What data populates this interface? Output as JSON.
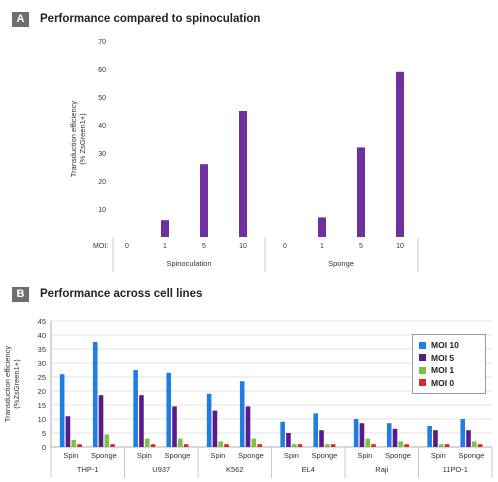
{
  "panel_a": {
    "label": "A",
    "title": "Performance compared to spinoculation"
  },
  "panel_b": {
    "label": "B",
    "title": "Performance across cell lines"
  },
  "chart_data": [
    {
      "type": "bar",
      "title": "Performance compared to spinoculation",
      "ylabel": "Transduction efficiency (% ZsGreen1+)",
      "ylim": [
        0,
        70
      ],
      "yticks": [
        10,
        20,
        30,
        40,
        50,
        60,
        70
      ],
      "xlabel_prefix": "MOI:",
      "grid": false,
      "color": "#7030a0",
      "groups": [
        {
          "name": "Spinoculation",
          "categories": [
            "0",
            "1",
            "5",
            "10"
          ],
          "values": [
            0,
            6,
            26,
            45
          ]
        },
        {
          "name": "Sponge",
          "categories": [
            "0",
            "1",
            "5",
            "10"
          ],
          "values": [
            0,
            7,
            32,
            59
          ]
        }
      ]
    },
    {
      "type": "bar",
      "title": "Performance across cell lines",
      "ylabel": "Transduction efficiency (%ZsGreen1+)",
      "ylim": [
        0,
        45
      ],
      "yticks": [
        0,
        5,
        10,
        15,
        20,
        25,
        30,
        35,
        40,
        45
      ],
      "grid": true,
      "legend_position": "top-right",
      "cell_lines": [
        "THP-1",
        "U937",
        "K562",
        "EL4",
        "Raji",
        "11PO-1"
      ],
      "methods": [
        "Spin",
        "Sponge"
      ],
      "series": [
        {
          "name": "MOI 10",
          "color": "#1f7fe0",
          "values": [
            26,
            37.5,
            27.5,
            26.5,
            19,
            23.5,
            9,
            12,
            10,
            8.5,
            7.5,
            10
          ]
        },
        {
          "name": "MOI 5",
          "color": "#5b1a8c",
          "values": [
            11,
            18.5,
            18.5,
            14.5,
            13,
            14.5,
            5,
            6,
            8.5,
            6.5,
            6,
            6
          ]
        },
        {
          "name": "MOI 1",
          "color": "#7cc242",
          "values": [
            2.5,
            4.5,
            3,
            3,
            2,
            3,
            1,
            1,
            3,
            2,
            1,
            2
          ]
        },
        {
          "name": "MOI 0",
          "color": "#d42a2a",
          "values": [
            1,
            1,
            1,
            1,
            1,
            1,
            1,
            1,
            1,
            1,
            1,
            1
          ]
        }
      ]
    }
  ]
}
